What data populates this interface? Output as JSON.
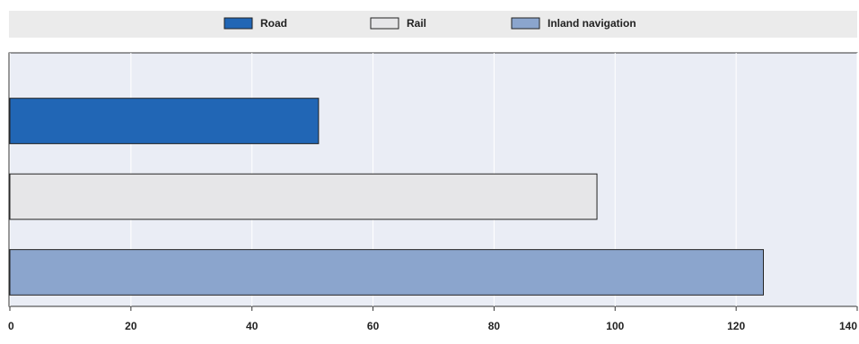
{
  "chart_data": {
    "type": "bar",
    "orientation": "horizontal",
    "categories": [
      null
    ],
    "series": [
      {
        "name": "Road",
        "color": "#2166b5",
        "values": [
          51
        ]
      },
      {
        "name": "Rail",
        "color": "#e6e6e8",
        "values": [
          97
        ]
      },
      {
        "name": "Inland navigation",
        "color": "#8ba5cd",
        "values": [
          124.5
        ]
      }
    ],
    "xlim": [
      0,
      140
    ],
    "xticks": [
      0,
      20,
      40,
      60,
      80,
      100,
      120,
      140
    ],
    "grid": true
  }
}
